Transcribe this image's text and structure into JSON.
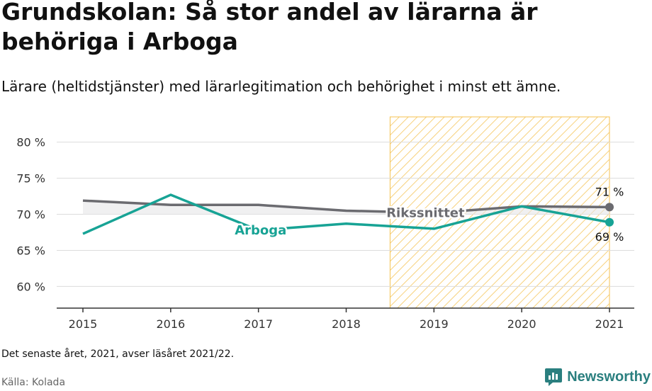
{
  "title": "Grundskolan: Så stor andel av lärarna är behöriga i Arboga",
  "subtitle": "Lärare (heltidstjänster) med lärarlegitimation och behörighet i minst ett ämne.",
  "note": "Det senaste året, 2021, avser läsåret 2021/22.",
  "source": "Källa: Kolada",
  "brand": "Newsworthy",
  "colors": {
    "arboga": "#17a395",
    "riket": "#6b6b70",
    "highlight": "#f5c250"
  },
  "chart_data": {
    "type": "line",
    "title": "Grundskolan: Så stor andel av lärarna är behöriga i Arboga",
    "subtitle": "Lärare (heltidstjänster) med lärarlegitimation och behörighet i minst ett ämne.",
    "categories": [
      "2015",
      "2016",
      "2017",
      "2018",
      "2019",
      "2020",
      "2021"
    ],
    "series": [
      {
        "name": "Rikssnittet",
        "values": [
          71.9,
          71.3,
          71.3,
          70.5,
          70.2,
          71.1,
          71.0
        ]
      },
      {
        "name": "Arboga",
        "values": [
          67.3,
          72.7,
          67.8,
          68.7,
          68.0,
          71.1,
          68.9
        ]
      }
    ],
    "yticks": [
      60,
      65,
      70,
      75,
      80
    ],
    "ytick_labels": [
      "60 %",
      "65 %",
      "70 %",
      "75 %",
      "80 %"
    ],
    "ylim": [
      57,
      83.5
    ],
    "highlight_range": [
      "2019",
      "2021"
    ],
    "end_labels": {
      "Rikssnittet": "71 %",
      "Arboga": "69 %"
    },
    "grid": true
  }
}
